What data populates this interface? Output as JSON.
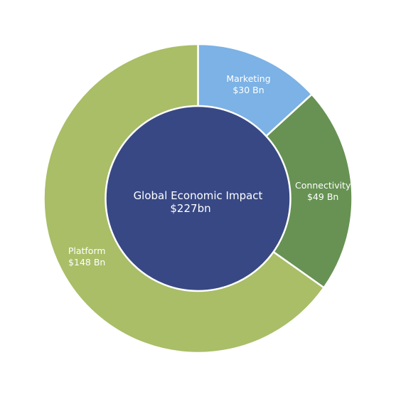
{
  "chart_data": {
    "type": "pie",
    "center_text": {
      "line1": "Global Economic Impact",
      "line2": "$227bn"
    },
    "center_color": "#384884",
    "slices": [
      {
        "name": "Marketing",
        "value_label": "$30 Bn",
        "value": 30,
        "color": "#7cb2e5"
      },
      {
        "name": "Connectivity",
        "value_label": "$49 Bn",
        "value": 49,
        "color": "#679253"
      },
      {
        "name": "Platform",
        "value_label": "$148 Bn",
        "value": 148,
        "color": "#a9be67"
      }
    ]
  }
}
